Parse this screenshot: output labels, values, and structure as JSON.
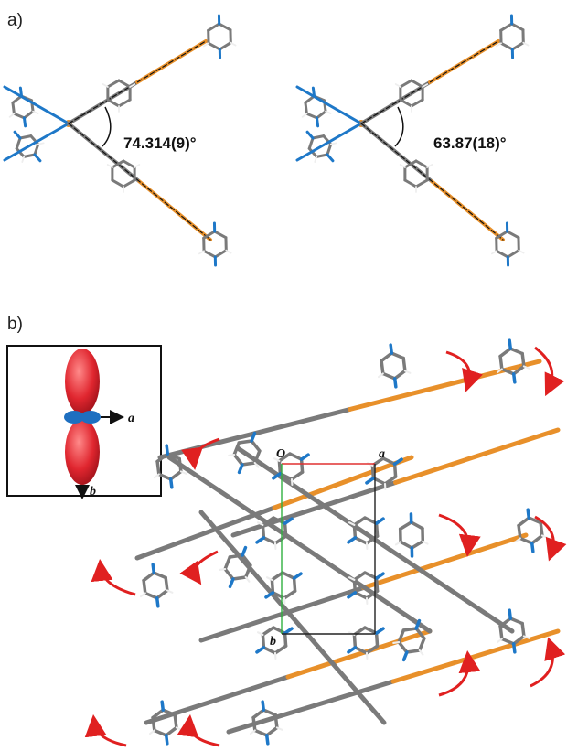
{
  "figure": {
    "panel_a": {
      "label": "a)",
      "left_angle": "74.314(9)°",
      "right_angle": "63.87(18)°"
    },
    "panel_b": {
      "label": "b)",
      "cell_origin": "O",
      "axis_a": "a",
      "axis_b": "b",
      "inset_axis_a": "a",
      "inset_axis_b": "b"
    }
  },
  "colors": {
    "carbon": "#7a7a7a",
    "nitrogen": "#1e78c8",
    "metal": "#e8902a",
    "hydrogen": "#eeeeee",
    "arrow": "#e02020",
    "lobe": "#d8202e",
    "lobe_small": "#1e6fc0",
    "cell_a": "#e03030",
    "cell_b": "#30b040"
  }
}
